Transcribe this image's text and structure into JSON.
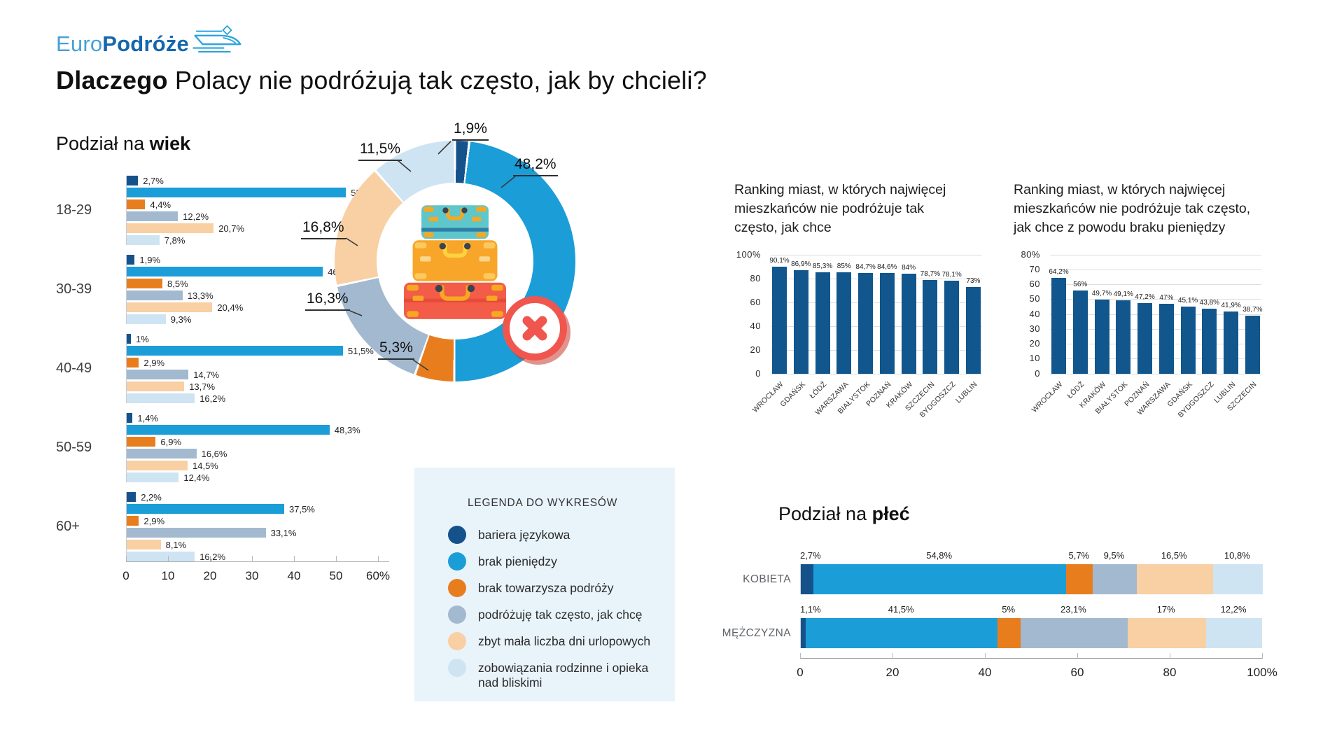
{
  "logo": {
    "light": "Euro",
    "bold": "Podróże"
  },
  "title": {
    "bold": "Dlaczego",
    "rest": " Polacy nie podróżują tak często, jak by chcieli?"
  },
  "colors": {
    "navy": "#15528c",
    "blue": "#1b9dd8",
    "orange": "#e87d1e",
    "gray_blue": "#a2b9d0",
    "peach": "#f8d0a4",
    "pale_blue": "#cfe4f2",
    "city_bar": "#11568c",
    "legend_bg": "#e9f3fa",
    "badge_red": "#f0564e"
  },
  "legend": {
    "title": "LEGENDA DO WYKRESÓW",
    "items": [
      {
        "label": "bariera językowa",
        "color": "#15528c"
      },
      {
        "label": "brak pieniędzy",
        "color": "#1b9dd8"
      },
      {
        "label": "brak towarzysza podróży",
        "color": "#e87d1e"
      },
      {
        "label": "podróżuję tak często, jak chcę",
        "color": "#a2b9d0"
      },
      {
        "label": "zbyt mała liczba dni urlopowych",
        "color": "#f8d0a4"
      },
      {
        "label": "zobowiązania rodzinne i opieka nad bliskimi",
        "color": "#cfe4f2"
      }
    ]
  },
  "chart_data": [
    {
      "id": "age-chart",
      "type": "bar",
      "orientation": "horizontal",
      "title_prefix": "Podział na ",
      "title_bold": "wiek",
      "categories": [
        "18-29",
        "30-39",
        "40-49",
        "50-59",
        "60+"
      ],
      "series": [
        {
          "name": "bariera językowa",
          "color": "#15528c",
          "values": [
            2.7,
            1.9,
            1,
            1.4,
            2.2
          ],
          "value_labels": [
            "2,7%",
            "1,9%",
            "1%",
            "1,4%",
            "2,2%"
          ]
        },
        {
          "name": "brak pieniędzy",
          "color": "#1b9dd8",
          "values": [
            52.2,
            46.7,
            51.5,
            48.3,
            37.5
          ],
          "value_labels": [
            "52,2%",
            "46,7%",
            "51,5%",
            "48,3%",
            "37,5%"
          ]
        },
        {
          "name": "brak towarzysza podróży",
          "color": "#e87d1e",
          "values": [
            4.4,
            8.5,
            2.9,
            6.9,
            2.9
          ],
          "value_labels": [
            "4,4%",
            "8,5%",
            "2,9%",
            "6,9%",
            "2,9%"
          ]
        },
        {
          "name": "podróżuję tak często, jak chcę",
          "color": "#a2b9d0",
          "values": [
            12.2,
            13.3,
            14.7,
            16.6,
            33.1
          ],
          "value_labels": [
            "12,2%",
            "13,3%",
            "14,7%",
            "16,6%",
            "33,1%"
          ]
        },
        {
          "name": "zbyt mała liczba dni urlopowych",
          "color": "#f8d0a4",
          "values": [
            20.7,
            20.4,
            13.7,
            14.5,
            8.1
          ],
          "value_labels": [
            "20,7%",
            "20,4%",
            "13,7%",
            "14,5%",
            "8,1%"
          ]
        },
        {
          "name": "zobowiązania rodzinne i opieka nad bliskimi",
          "color": "#cfe4f2",
          "values": [
            7.8,
            9.3,
            16.2,
            12.4,
            16.2
          ],
          "value_labels": [
            "7,8%",
            "9,3%",
            "16,2%",
            "12,4%",
            "16,2%"
          ]
        }
      ],
      "xlim": [
        0,
        60
      ],
      "x_ticks": [
        "0",
        "10",
        "20",
        "30",
        "40",
        "50",
        "60%"
      ]
    },
    {
      "id": "donut-chart",
      "type": "pie",
      "slices": [
        {
          "label": "bariera językowa",
          "value": 1.9,
          "display": "1,9%",
          "color": "#15528c"
        },
        {
          "label": "brak pieniędzy",
          "value": 48.2,
          "display": "48,2%",
          "color": "#1b9dd8"
        },
        {
          "label": "brak towarzysza podróży",
          "value": 5.3,
          "display": "5,3%",
          "color": "#e87d1e"
        },
        {
          "label": "podróżuję tak często, jak chcę",
          "value": 16.3,
          "display": "16,3%",
          "color": "#a2b9d0"
        },
        {
          "label": "zbyt mała liczba dni urlopowych",
          "value": 16.8,
          "display": "16,8%",
          "color": "#f8d0a4"
        },
        {
          "label": "zobowiązania rodzinne i opieka nad bliskimi",
          "value": 11.5,
          "display": "11,5%",
          "color": "#cfe4f2"
        }
      ]
    },
    {
      "id": "city-ranking",
      "type": "bar",
      "title": "Ranking miast, w których najwięcej mieszkańców nie podróżuje tak często, jak chce",
      "categories": [
        "WROCŁAW",
        "GDAŃSK",
        "ŁÓDŹ",
        "WARSZAWA",
        "BIAŁYSTOK",
        "POZNAŃ",
        "KRAKÓW",
        "SZCZECIN",
        "BYDGOSZCZ",
        "LUBLIN"
      ],
      "values": [
        90.1,
        86.9,
        85.3,
        85,
        84.7,
        84.6,
        84,
        78.7,
        78.1,
        73
      ],
      "value_labels": [
        "90,1%",
        "86,9%",
        "85,3%",
        "85%",
        "84,7%",
        "84,6%",
        "84%",
        "78,7%",
        "78,1%",
        "73%"
      ],
      "ylim": [
        0,
        100
      ],
      "y_ticks": [
        "100%",
        "80",
        "60",
        "40",
        "20",
        "0"
      ],
      "bar_color": "#11568c"
    },
    {
      "id": "city-ranking-money",
      "type": "bar",
      "title": "Ranking miast, w których najwięcej mieszkańców nie podróżuje tak często, jak chce z powodu braku pieniędzy",
      "categories": [
        "WROCŁAW",
        "ŁÓDŹ",
        "KRAKÓW",
        "BIAŁYSTOK",
        "POZNAŃ",
        "WARSZAWA",
        "GDAŃSK",
        "BYDGOSZCZ",
        "LUBLIN",
        "SZCZECIN"
      ],
      "values": [
        64.2,
        56,
        49.7,
        49.1,
        47.2,
        47,
        45.1,
        43.8,
        41.9,
        38.7
      ],
      "value_labels": [
        "64,2%",
        "56%",
        "49,7%",
        "49,1%",
        "47,2%",
        "47%",
        "45,1%",
        "43,8%",
        "41,9%",
        "38,7%"
      ],
      "ylim": [
        0,
        80
      ],
      "y_ticks": [
        "80%",
        "70",
        "60",
        "50",
        "40",
        "30",
        "20",
        "10",
        "0"
      ],
      "bar_color": "#11568c"
    },
    {
      "id": "gender-chart",
      "type": "bar",
      "stacked": true,
      "orientation": "horizontal",
      "title_prefix": "Podział na ",
      "title_bold": "płeć",
      "categories": [
        "KOBIETA",
        "MĘŻCZYZNA"
      ],
      "series": [
        {
          "name": "bariera językowa",
          "color": "#15528c",
          "values": [
            2.7,
            1.1
          ],
          "value_labels": [
            "2,7%",
            "1,1%"
          ]
        },
        {
          "name": "brak pieniędzy",
          "color": "#1b9dd8",
          "values": [
            54.8,
            41.5
          ],
          "value_labels": [
            "54,8%",
            "41,5%"
          ]
        },
        {
          "name": "brak towarzysza podróży",
          "color": "#e87d1e",
          "values": [
            5.7,
            5
          ],
          "value_labels": [
            "5,7%",
            "5%"
          ]
        },
        {
          "name": "podróżuję tak często, jak chcę",
          "color": "#a2b9d0",
          "values": [
            9.5,
            23.1
          ],
          "value_labels": [
            "9,5%",
            "23,1%"
          ]
        },
        {
          "name": "zbyt mała liczba dni urlopowych",
          "color": "#f8d0a4",
          "values": [
            16.5,
            17
          ],
          "value_labels": [
            "16,5%",
            "17%"
          ]
        },
        {
          "name": "zobowiązania rodzinne i opieka nad bliskimi",
          "color": "#cfe4f2",
          "values": [
            10.8,
            12.2
          ],
          "value_labels": [
            "10,8%",
            "12,2%"
          ]
        }
      ],
      "xlim": [
        0,
        100
      ],
      "x_ticks": [
        "0",
        "20",
        "40",
        "60",
        "80",
        "100%"
      ]
    }
  ]
}
